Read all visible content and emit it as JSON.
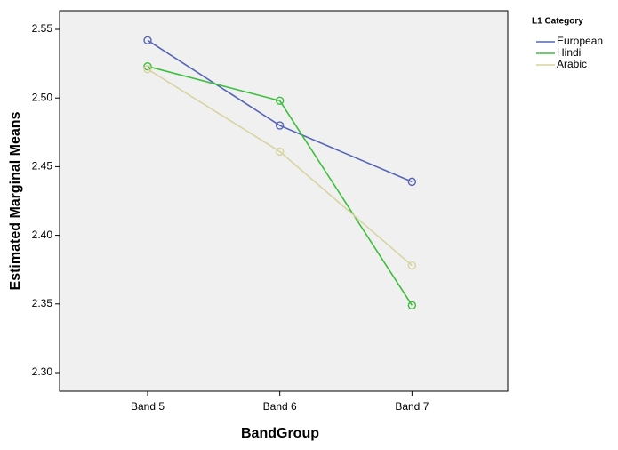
{
  "chart_data": {
    "type": "line",
    "y_label": "Estimated Marginal Means",
    "x_label": "BandGroup",
    "legend_title": "L1 Category",
    "legend": "top-right",
    "grid": false,
    "categories": [
      "Band 5",
      "Band 6",
      "Band 7"
    ],
    "series": [
      {
        "name": "European",
        "color": "#5564b8",
        "values": [
          2.542,
          2.48,
          2.439
        ]
      },
      {
        "name": "Hindi",
        "color": "#3cbf3c",
        "values": [
          2.523,
          2.498,
          2.349
        ]
      },
      {
        "name": "Arabic",
        "color": "#d8d4a2",
        "values": [
          2.521,
          2.461,
          2.378
        ]
      }
    ],
    "ylim": [
      2.2864,
      2.5636
    ],
    "yticks": [
      {
        "value": 2.3,
        "label": "2.30"
      },
      2.35,
      {
        "value": 2.4,
        "label": "2.40"
      },
      2.45,
      {
        "value": 2.5,
        "label": "2.50"
      },
      2.55
    ]
  }
}
